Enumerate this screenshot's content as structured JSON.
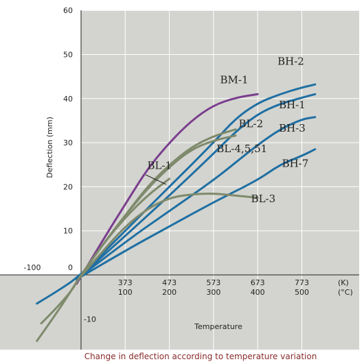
{
  "chart_data": {
    "type": "line",
    "title": "",
    "caption": "Change in deflection according to temperature variation",
    "xlabel": "Temperature",
    "ylabel": "Deflection (mm)",
    "x_unit_kelvin": "(K)",
    "x_unit_celsius": "(°C)",
    "xlim": [
      -100,
      530
    ],
    "ylim": [
      -15,
      60
    ],
    "y_ticks": [
      {
        "value": 60,
        "label": "60"
      },
      {
        "value": 50,
        "label": "50"
      },
      {
        "value": 40,
        "label": "40"
      },
      {
        "value": 30,
        "label": "30"
      },
      {
        "value": 20,
        "label": "20"
      },
      {
        "value": 10,
        "label": "10"
      },
      {
        "value": 0,
        "label": "0"
      },
      {
        "value": -10,
        "label": "-10"
      }
    ],
    "x_ticks": [
      {
        "value": -100,
        "kelvin": "",
        "celsius": "-100"
      },
      {
        "value": 100,
        "kelvin": "373",
        "celsius": "100"
      },
      {
        "value": 200,
        "kelvin": "473",
        "celsius": "200"
      },
      {
        "value": 300,
        "kelvin": "573",
        "celsius": "300"
      },
      {
        "value": 400,
        "kelvin": "673",
        "celsius": "400"
      },
      {
        "value": 500,
        "kelvin": "773",
        "celsius": "500"
      }
    ],
    "grid": true,
    "series": [
      {
        "name": "BM-1",
        "color": "#7a3d8e",
        "width": 3,
        "label_at": [
          315,
          43.5
        ],
        "points": [
          [
            -10,
            -2
          ],
          [
            50,
            8
          ],
          [
            100,
            16
          ],
          [
            150,
            24
          ],
          [
            200,
            30
          ],
          [
            250,
            35
          ],
          [
            300,
            38.5
          ],
          [
            350,
            40.2
          ],
          [
            400,
            41
          ]
        ]
      },
      {
        "name": "BH-2",
        "color": "#1f6fa3",
        "width": 3,
        "label_at": [
          445,
          47.7
        ],
        "points": [
          [
            -100,
            -6.5
          ],
          [
            -50,
            -3.5
          ],
          [
            0,
            0
          ],
          [
            100,
            10
          ],
          [
            200,
            20
          ],
          [
            300,
            30
          ],
          [
            350,
            35.5
          ],
          [
            400,
            39
          ],
          [
            450,
            41
          ],
          [
            500,
            42.5
          ],
          [
            530,
            43.2
          ]
        ]
      },
      {
        "name": "BH-1",
        "color": "#1f6fa3",
        "width": 3,
        "label_at": [
          448,
          37.8
        ],
        "points": [
          [
            -10,
            -1
          ],
          [
            100,
            8.8
          ],
          [
            200,
            18
          ],
          [
            300,
            27.5
          ],
          [
            350,
            32.5
          ],
          [
            400,
            36.5
          ],
          [
            450,
            38.8
          ],
          [
            500,
            40.2
          ],
          [
            530,
            41
          ]
        ]
      },
      {
        "name": "BH-3",
        "color": "#1f6fa3",
        "width": 3,
        "label_at": [
          448,
          32.5
        ],
        "points": [
          [
            -10,
            -1
          ],
          [
            100,
            7.5
          ],
          [
            200,
            14.5
          ],
          [
            300,
            21.5
          ],
          [
            350,
            25.5
          ],
          [
            400,
            29.5
          ],
          [
            450,
            33
          ],
          [
            500,
            35.3
          ],
          [
            530,
            35.8
          ]
        ]
      },
      {
        "name": "BH-7",
        "color": "#1f6fa3",
        "width": 3,
        "label_at": [
          455,
          24.5
        ],
        "points": [
          [
            -10,
            -1
          ],
          [
            100,
            5.5
          ],
          [
            200,
            11
          ],
          [
            300,
            16.5
          ],
          [
            400,
            21.5
          ],
          [
            450,
            25
          ],
          [
            500,
            27
          ],
          [
            530,
            28.5
          ]
        ]
      },
      {
        "name": "BL-2",
        "color": "#7e8a6c",
        "width": 3,
        "label_at": [
          357,
          33.5
        ],
        "points": [
          [
            -90,
            -11
          ],
          [
            -30,
            -5
          ],
          [
            0,
            0
          ],
          [
            50,
            7
          ],
          [
            100,
            13.5
          ],
          [
            150,
            20
          ],
          [
            200,
            25
          ],
          [
            250,
            29
          ],
          [
            300,
            31.5
          ],
          [
            350,
            33
          ]
        ]
      },
      {
        "name": "BL-4,5,51",
        "color": "#7e8a6c",
        "width": 3,
        "label_at": [
          307,
          27.8
        ],
        "points": [
          [
            -10,
            -1.5
          ],
          [
            50,
            7
          ],
          [
            100,
            13.5
          ],
          [
            150,
            19.5
          ],
          [
            200,
            24.5
          ],
          [
            250,
            28.5
          ],
          [
            300,
            30.5
          ],
          [
            350,
            31.6
          ]
        ]
      },
      {
        "name": "BL-1",
        "color": "#7e8a6c",
        "width": 3,
        "label_at": [
          150,
          24
        ],
        "points": [
          [
            -100,
            -15
          ],
          [
            -50,
            -8
          ],
          [
            0,
            0
          ],
          [
            50,
            7
          ],
          [
            100,
            13
          ],
          [
            150,
            18
          ],
          [
            200,
            21.8
          ]
        ]
      },
      {
        "name": "BL-3",
        "color": "#7e8a6c",
        "width": 3,
        "label_at": [
          385,
          16.5
        ],
        "points": [
          [
            -10,
            -1.5
          ],
          [
            50,
            5.5
          ],
          [
            100,
            11
          ],
          [
            150,
            15
          ],
          [
            200,
            17.5
          ],
          [
            250,
            18.3
          ],
          [
            300,
            18.5
          ],
          [
            350,
            18
          ],
          [
            400,
            17.5
          ]
        ]
      }
    ]
  }
}
